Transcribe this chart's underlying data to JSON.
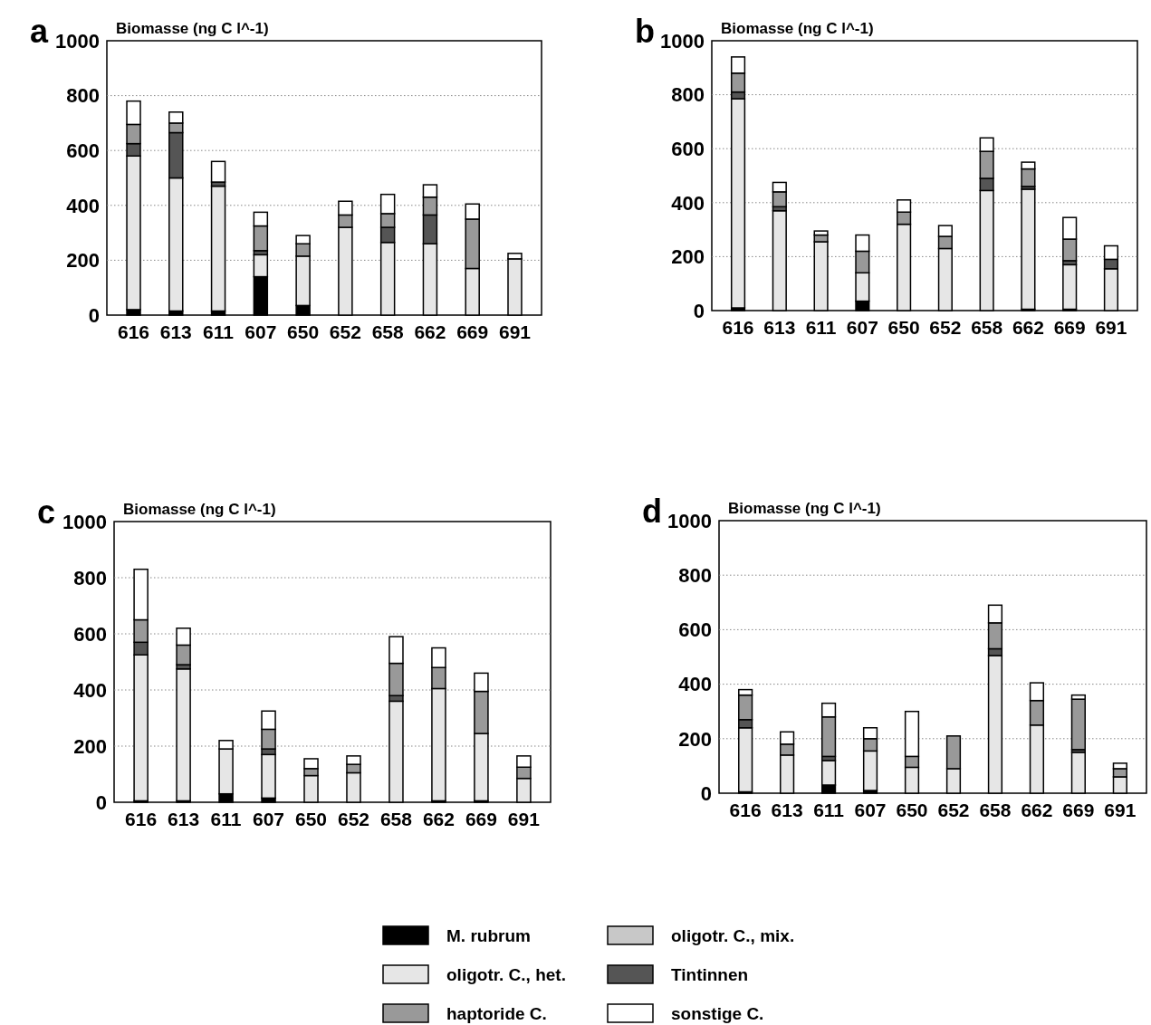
{
  "chart_data": [
    {
      "type": "bar",
      "title": "a",
      "ylabel": "Biomasse (ng C l^-1)",
      "categories": [
        "616",
        "613",
        "611",
        "607",
        "650",
        "652",
        "658",
        "662",
        "669",
        "691"
      ],
      "stacked": true,
      "ylim": [
        0,
        1000
      ],
      "yticks": [
        0,
        200,
        400,
        600,
        800,
        1000
      ],
      "grid": "y",
      "series": [
        {
          "color": "#000000",
          "values": [
            20,
            15,
            15,
            140,
            35,
            0,
            0,
            0,
            0,
            0
          ]
        },
        {
          "color": "#e6e6e6",
          "values": [
            560,
            485,
            455,
            80,
            180,
            320,
            265,
            260,
            170,
            205
          ]
        },
        {
          "color": "#c8c8c8",
          "values": [
            0,
            0,
            0,
            0,
            0,
            0,
            0,
            0,
            0,
            0
          ]
        },
        {
          "color": "#555555",
          "values": [
            45,
            165,
            15,
            15,
            0,
            0,
            55,
            105,
            0,
            0
          ]
        },
        {
          "color": "#999999",
          "values": [
            70,
            35,
            0,
            90,
            45,
            45,
            50,
            65,
            180,
            0
          ]
        },
        {
          "color": "#ffffff",
          "values": [
            85,
            40,
            75,
            50,
            30,
            50,
            70,
            45,
            55,
            20
          ]
        }
      ]
    },
    {
      "type": "bar",
      "title": "b",
      "ylabel": "Biomasse (ng C l^-1)",
      "categories": [
        "616",
        "613",
        "611",
        "607",
        "650",
        "652",
        "658",
        "662",
        "669",
        "691"
      ],
      "stacked": true,
      "ylim": [
        0,
        1000
      ],
      "yticks": [
        0,
        200,
        400,
        600,
        800,
        1000
      ],
      "grid": "y",
      "series": [
        {
          "color": "#000000",
          "values": [
            10,
            0,
            0,
            35,
            0,
            0,
            0,
            5,
            5,
            0
          ]
        },
        {
          "color": "#e6e6e6",
          "values": [
            775,
            370,
            255,
            105,
            320,
            230,
            445,
            445,
            165,
            155
          ]
        },
        {
          "color": "#c8c8c8",
          "values": [
            0,
            0,
            0,
            0,
            0,
            0,
            0,
            0,
            0,
            0
          ]
        },
        {
          "color": "#555555",
          "values": [
            25,
            15,
            0,
            0,
            0,
            0,
            45,
            10,
            15,
            35
          ]
        },
        {
          "color": "#999999",
          "values": [
            70,
            55,
            25,
            80,
            45,
            45,
            100,
            65,
            80,
            0
          ]
        },
        {
          "color": "#ffffff",
          "values": [
            60,
            35,
            15,
            60,
            45,
            40,
            50,
            25,
            80,
            50
          ]
        }
      ]
    },
    {
      "type": "bar",
      "title": "c",
      "ylabel": "Biomasse (ng C l^-1)",
      "categories": [
        "616",
        "613",
        "611",
        "607",
        "650",
        "652",
        "658",
        "662",
        "669",
        "691"
      ],
      "stacked": true,
      "ylim": [
        0,
        1000
      ],
      "yticks": [
        0,
        200,
        400,
        600,
        800,
        1000
      ],
      "grid": "y",
      "series": [
        {
          "color": "#000000",
          "values": [
            5,
            5,
            30,
            15,
            0,
            0,
            0,
            5,
            5,
            0
          ]
        },
        {
          "color": "#e6e6e6",
          "values": [
            520,
            470,
            160,
            155,
            95,
            105,
            360,
            400,
            240,
            85
          ]
        },
        {
          "color": "#c8c8c8",
          "values": [
            0,
            0,
            0,
            0,
            0,
            0,
            0,
            0,
            0,
            0
          ]
        },
        {
          "color": "#555555",
          "values": [
            45,
            15,
            0,
            20,
            0,
            0,
            20,
            0,
            0,
            0
          ]
        },
        {
          "color": "#999999",
          "values": [
            80,
            70,
            0,
            70,
            25,
            30,
            115,
            75,
            150,
            40
          ]
        },
        {
          "color": "#ffffff",
          "values": [
            180,
            60,
            30,
            65,
            35,
            30,
            95,
            70,
            65,
            40
          ]
        }
      ]
    },
    {
      "type": "bar",
      "title": "d",
      "ylabel": "Biomasse (ng C l^-1)",
      "categories": [
        "616",
        "613",
        "611",
        "607",
        "650",
        "652",
        "658",
        "662",
        "669",
        "691"
      ],
      "stacked": true,
      "ylim": [
        0,
        1000
      ],
      "yticks": [
        0,
        200,
        400,
        600,
        800,
        1000
      ],
      "grid": "y",
      "legend": "bottom",
      "series": [
        {
          "name": "M. rubrum",
          "color": "#000000",
          "values": [
            5,
            0,
            30,
            10,
            0,
            0,
            0,
            0,
            0,
            0
          ]
        },
        {
          "name": "oligotr. C., het.",
          "color": "#e6e6e6",
          "values": [
            235,
            140,
            90,
            145,
            95,
            90,
            505,
            250,
            150,
            60
          ]
        },
        {
          "name": "oligotr. C., mix.",
          "color": "#c8c8c8",
          "values": [
            0,
            0,
            0,
            0,
            0,
            0,
            0,
            0,
            0,
            0
          ]
        },
        {
          "name": "Tintinnen",
          "color": "#555555",
          "values": [
            30,
            0,
            15,
            0,
            0,
            0,
            25,
            0,
            10,
            0
          ]
        },
        {
          "name": "haptoride C.",
          "color": "#999999",
          "values": [
            90,
            40,
            145,
            45,
            40,
            120,
            95,
            90,
            185,
            30
          ]
        },
        {
          "name": "sonstige C.",
          "color": "#ffffff",
          "values": [
            20,
            45,
            50,
            40,
            165,
            0,
            65,
            65,
            15,
            20
          ]
        }
      ]
    }
  ]
}
